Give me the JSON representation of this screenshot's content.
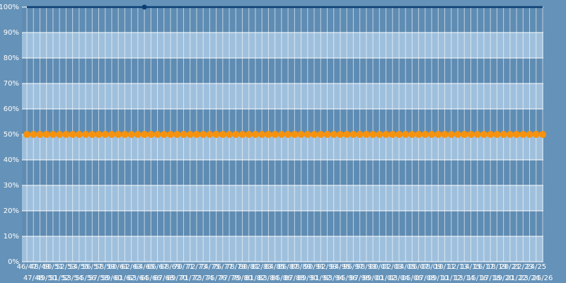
{
  "chart_data": {
    "type": "line",
    "categories": [
      "46/47",
      "47/48",
      "48/49",
      "49/50",
      "50/51",
      "51/52",
      "52/53",
      "53/54",
      "54/55",
      "55/56",
      "56/57",
      "57/58",
      "58/59",
      "59/60",
      "60/61",
      "61/62",
      "62/63",
      "63/64",
      "64/65",
      "65/66",
      "66/67",
      "67/68",
      "68/69",
      "69/70",
      "70/71",
      "71/72",
      "72/73",
      "73/74",
      "74/75",
      "75/76",
      "76/77",
      "77/78",
      "78/79",
      "79/80",
      "80/81",
      "81/82",
      "82/83",
      "83/84",
      "84/85",
      "85/86",
      "86/87",
      "87/88",
      "88/89",
      "89/90",
      "90/91",
      "91/92",
      "92/93",
      "93/94",
      "94/95",
      "95/96",
      "96/97",
      "97/98",
      "98/99",
      "99/00",
      "00/01",
      "01/02",
      "02/03",
      "03/04",
      "04/05",
      "05/06",
      "06/07",
      "07/08",
      "08/09",
      "09/10",
      "10/11",
      "11/12",
      "12/13",
      "13/14",
      "14/15",
      "15/16",
      "16/17",
      "17/18",
      "18/19",
      "19/20",
      "20/21",
      "21/22",
      "22/23",
      "23/24",
      "24/25",
      "25/26"
    ],
    "series": [
      {
        "color": "#0b3d73",
        "marker_indices": [
          18
        ],
        "values": [
          100,
          100,
          100,
          100,
          100,
          100,
          100,
          100,
          100,
          100,
          100,
          100,
          100,
          100,
          100,
          100,
          100,
          100,
          100,
          100,
          100,
          100,
          100,
          100,
          100,
          100,
          100,
          100,
          100,
          100,
          100,
          100,
          100,
          100,
          100,
          100,
          100,
          100,
          100,
          100,
          100,
          100,
          100,
          100,
          100,
          100,
          100,
          100,
          100,
          100,
          100,
          100,
          100,
          100,
          100,
          100,
          100,
          100,
          100,
          100,
          100,
          100,
          100,
          100,
          100,
          100,
          100,
          100,
          100,
          100,
          100,
          100,
          100,
          100,
          100,
          100,
          100,
          100,
          100,
          100
        ]
      },
      {
        "color": "#f5920f",
        "markers": true,
        "values": [
          50,
          50,
          50,
          50,
          50,
          50,
          50,
          50,
          50,
          50,
          50,
          50,
          50,
          50,
          50,
          50,
          50,
          50,
          50,
          50,
          50,
          50,
          50,
          50,
          50,
          50,
          50,
          50,
          50,
          50,
          50,
          50,
          50,
          50,
          50,
          50,
          50,
          50,
          50,
          50,
          50,
          50,
          50,
          50,
          50,
          50,
          50,
          50,
          50,
          50,
          50,
          50,
          50,
          50,
          50,
          50,
          50,
          50,
          50,
          50,
          50,
          50,
          50,
          50,
          50,
          50,
          50,
          50,
          50,
          50,
          50,
          50,
          50,
          50,
          50,
          50,
          50,
          50,
          50,
          50
        ]
      }
    ],
    "ylim": [
      0,
      100
    ],
    "yticks": [
      {
        "value": 0,
        "label": "0%"
      },
      {
        "value": 10,
        "label": "10%"
      },
      {
        "value": 20,
        "label": "20%"
      },
      {
        "value": 30,
        "label": "30%"
      },
      {
        "value": 40,
        "label": "40%"
      },
      {
        "value": 50,
        "label": "50%"
      },
      {
        "value": 60,
        "label": "60%"
      },
      {
        "value": 70,
        "label": "70%"
      },
      {
        "value": 80,
        "label": "80%"
      },
      {
        "value": 90,
        "label": "90%"
      },
      {
        "value": 100,
        "label": "100%"
      }
    ],
    "grid": true
  }
}
